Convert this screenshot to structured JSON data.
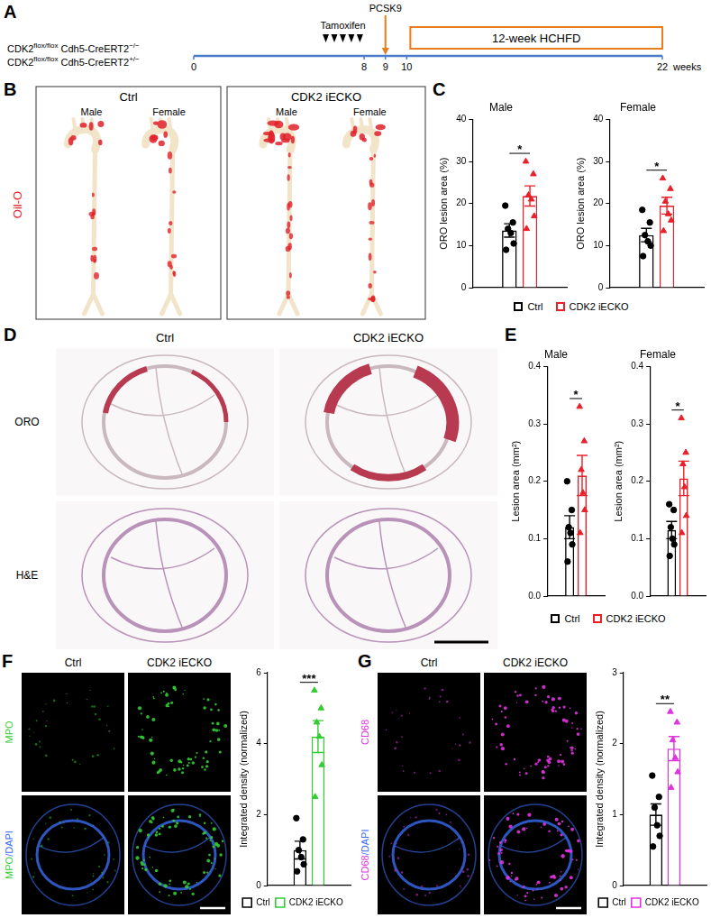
{
  "figure": {
    "A": {
      "label": "A",
      "genotypes": [
        [
          {
            "text": "CDK2"
          },
          {
            "text": "flox/flox",
            "sup": true
          },
          {
            "text": " Cdh5-CreERT2"
          },
          {
            "text": "−/−",
            "sup": true
          }
        ],
        [
          {
            "text": "CDK2"
          },
          {
            "text": "flox/flox",
            "sup": true
          },
          {
            "text": " Cdh5-CreERT2"
          },
          {
            "text": "+/−",
            "sup": true
          }
        ]
      ],
      "timeline": {
        "range": [
          0,
          22
        ],
        "ticks": [
          0,
          8,
          9,
          10,
          22
        ],
        "unit": "weeks"
      },
      "tamoxifen": {
        "label": "Tamoxifen",
        "times": [
          6.2,
          6.6,
          7.0,
          7.4,
          7.8
        ]
      },
      "pcsk9": {
        "label": "PCSK9",
        "time": 9
      },
      "diet": {
        "label": "12-week HCHFD",
        "start": 10,
        "end": 22
      }
    },
    "B": {
      "label": "B",
      "stain": "Oil-O",
      "groups": [
        {
          "title": "Ctrl",
          "samples": [
            "Male",
            "Female"
          ]
        },
        {
          "title": "CDK2 iECKO",
          "samples": [
            "Male",
            "Female"
          ]
        }
      ]
    },
    "C": {
      "label": "C"
    },
    "D": {
      "label": "D",
      "columns": [
        "Ctrl",
        "CDK2 iECKO"
      ],
      "rows": [
        "ORO",
        "H&E"
      ]
    },
    "E": {
      "label": "E"
    },
    "F": {
      "label": "F",
      "columns": [
        "Ctrl",
        "CDK2 iECKO"
      ],
      "rows": [
        [
          {
            "text": "MPO",
            "color": "#33cc33"
          }
        ],
        [
          {
            "text": "MPO",
            "color": "#33cc33"
          },
          {
            "text": "/DAPI",
            "color": "#3a6cf0"
          }
        ]
      ]
    },
    "G": {
      "label": "G",
      "columns": [
        "Ctrl",
        "CDK2 iECKO"
      ],
      "rows": [
        [
          {
            "text": "CD68",
            "color": "#e033e0"
          }
        ],
        [
          {
            "text": "CD68",
            "color": "#e033e0"
          },
          {
            "text": "/DAPI",
            "color": "#3a6cf0"
          }
        ]
      ]
    }
  },
  "chart_data": [
    {
      "type": "bar",
      "title": "Male",
      "y_label": "ORO lesion area (%)",
      "ylim": [
        0,
        40
      ],
      "yticks": [
        0,
        10,
        20,
        30,
        40
      ],
      "grid": false,
      "tick_labels": "y",
      "legend": "bottom",
      "annotation": "*",
      "series": [
        {
          "name": "Ctrl",
          "color": "#000000",
          "marker": "circle",
          "values": [
            13.6
          ],
          "errors": [
            1.6
          ],
          "points": [
            19.5,
            15.5,
            14,
            13,
            10.5,
            9
          ]
        },
        {
          "name": "CDK2 iECKO",
          "color": "#e8202a",
          "marker": "triangle",
          "values": [
            21.8
          ],
          "errors": [
            2.4
          ],
          "points": [
            30,
            27,
            22,
            21,
            17,
            14
          ]
        }
      ]
    },
    {
      "type": "bar",
      "title": "Female",
      "y_label": "ORO lesion area (%)",
      "ylim": [
        0,
        40
      ],
      "yticks": [
        0,
        10,
        20,
        30,
        40
      ],
      "grid": false,
      "tick_labels": "y",
      "annotation": "*",
      "series": [
        {
          "name": "Ctrl",
          "color": "#000000",
          "marker": "circle",
          "values": [
            12.5
          ],
          "errors": [
            1.6
          ],
          "points": [
            18.5,
            15.5,
            12.5,
            11,
            10,
            7.5
          ]
        },
        {
          "name": "CDK2 iECKO",
          "color": "#e8202a",
          "marker": "triangle",
          "values": [
            19.5
          ],
          "errors": [
            2.0
          ],
          "points": [
            26,
            23.5,
            20.5,
            17.5,
            16,
            13.5
          ]
        }
      ]
    },
    {
      "type": "bar",
      "title": "Male",
      "y_label": "Lesion area (mm²)",
      "ylim": [
        0,
        0.4
      ],
      "yticks": [
        {
          "value": 0,
          "label": "0.0"
        },
        0.1,
        0.2,
        0.3,
        0.4
      ],
      "grid": false,
      "tick_labels": "y",
      "legend": "bottom",
      "annotation": "*",
      "series": [
        {
          "name": "Ctrl",
          "color": "#000000",
          "marker": "circle",
          "values": [
            0.12
          ],
          "errors": [
            0.02
          ],
          "points": [
            0.2,
            0.15,
            0.12,
            0.11,
            0.09,
            0.06
          ]
        },
        {
          "name": "CDK2 iECKO",
          "color": "#e8202a",
          "marker": "triangle",
          "values": [
            0.21
          ],
          "errors": [
            0.035
          ],
          "points": [
            0.33,
            0.27,
            0.22,
            0.18,
            0.15,
            0.11
          ]
        }
      ]
    },
    {
      "type": "bar",
      "title": "Female",
      "y_label": "Lesion area (mm²)",
      "ylim": [
        0,
        0.4
      ],
      "yticks": [
        {
          "value": 0,
          "label": "0.0"
        },
        0.1,
        0.2,
        0.3,
        0.4
      ],
      "grid": false,
      "tick_labels": "y",
      "annotation": "*",
      "series": [
        {
          "name": "Ctrl",
          "color": "#000000",
          "marker": "circle",
          "values": [
            0.115
          ],
          "errors": [
            0.015
          ],
          "points": [
            0.16,
            0.15,
            0.12,
            0.1,
            0.09,
            0.07
          ]
        },
        {
          "name": "CDK2 iECKO",
          "color": "#e8202a",
          "marker": "triangle",
          "values": [
            0.205
          ],
          "errors": [
            0.03
          ],
          "points": [
            0.31,
            0.25,
            0.23,
            0.19,
            0.14,
            0.11
          ]
        }
      ]
    },
    {
      "type": "bar",
      "y_label": "Integrated density (normalized)",
      "ylim": [
        0,
        6
      ],
      "yticks": [
        0,
        2,
        4,
        6
      ],
      "grid": false,
      "tick_labels": "y",
      "legend": "bottom",
      "annotation": "***",
      "series": [
        {
          "name": "Ctrl",
          "color": "#000000",
          "marker": "circle",
          "values": [
            1.0
          ],
          "errors": [
            0.25
          ],
          "points": [
            1.9,
            1.3,
            1.0,
            0.8,
            0.6,
            0.4
          ]
        },
        {
          "name": "CDK2 iECKO",
          "color": "#33cc33",
          "marker": "triangle",
          "values": [
            4.2
          ],
          "errors": [
            0.45
          ],
          "points": [
            5.5,
            5.0,
            4.6,
            4.2,
            3.4,
            2.5
          ]
        }
      ]
    },
    {
      "type": "bar",
      "y_label": "Integrated density (normalized)",
      "ylim": [
        0,
        3
      ],
      "yticks": [
        0,
        1,
        2,
        3
      ],
      "grid": false,
      "tick_labels": "y",
      "legend": "bottom",
      "annotation": "**",
      "series": [
        {
          "name": "Ctrl",
          "color": "#000000",
          "marker": "circle",
          "values": [
            1.0
          ],
          "errors": [
            0.15
          ],
          "points": [
            1.55,
            1.25,
            1.1,
            0.85,
            0.7,
            0.55
          ]
        },
        {
          "name": "CDK2 iECKO",
          "color": "#e033e0",
          "marker": "triangle",
          "values": [
            1.93
          ],
          "errors": [
            0.17
          ],
          "points": [
            2.45,
            2.3,
            2.05,
            1.8,
            1.6,
            1.38
          ]
        }
      ]
    }
  ]
}
